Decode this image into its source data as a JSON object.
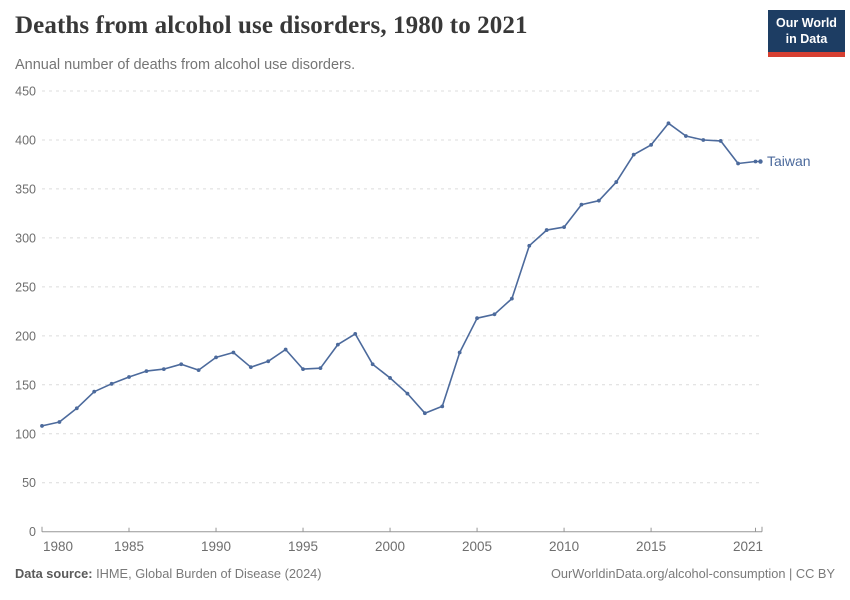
{
  "header": {
    "logo": {
      "line1": "Our World",
      "line2": "in Data"
    }
  },
  "footer": {
    "source_label": "Data source:",
    "source_text": " IHME, Global Burden of Disease (2024)",
    "link_text": "OurWorldinData.org/alcohol-consumption | CC BY"
  },
  "colors": {
    "series": "#4C6A9C",
    "logo_navy": "#1d3d63",
    "logo_red": "#d63f31",
    "gridline": "#dcdcdc",
    "axis": "#979797",
    "tick_text": "#6e6e6e"
  },
  "chart_data": {
    "type": "line",
    "title": "Deaths from alcohol use disorders, 1980 to 2021",
    "subtitle": "Annual number of deaths from alcohol use disorders.",
    "x": [
      1980,
      1981,
      1982,
      1983,
      1984,
      1985,
      1986,
      1987,
      1988,
      1989,
      1990,
      1991,
      1992,
      1993,
      1994,
      1995,
      1996,
      1997,
      1998,
      1999,
      2000,
      2001,
      2002,
      2003,
      2004,
      2005,
      2006,
      2007,
      2008,
      2009,
      2010,
      2011,
      2012,
      2013,
      2014,
      2015,
      2016,
      2017,
      2018,
      2019,
      2020,
      2021
    ],
    "series": [
      {
        "name": "Taiwan",
        "color": "#4C6A9C",
        "values": [
          108,
          112,
          126,
          143,
          151,
          158,
          164,
          166,
          171,
          165,
          178,
          183,
          168,
          174,
          186,
          166,
          167,
          191,
          202,
          171,
          157,
          141,
          121,
          128,
          183,
          218,
          222,
          238,
          292,
          308,
          311,
          334,
          338,
          357,
          385,
          395,
          417,
          404,
          400,
          399,
          376,
          378
        ]
      }
    ],
    "xlim": [
      1980,
      2021
    ],
    "ylim": [
      0,
      450
    ],
    "xticks": [
      1980,
      1985,
      1990,
      1995,
      2000,
      2005,
      2010,
      2015,
      2021
    ],
    "yticks": [
      0,
      50,
      100,
      150,
      200,
      250,
      300,
      350,
      400,
      450
    ],
    "grid": "horizontal-dashed",
    "legend": "series-end-label"
  }
}
